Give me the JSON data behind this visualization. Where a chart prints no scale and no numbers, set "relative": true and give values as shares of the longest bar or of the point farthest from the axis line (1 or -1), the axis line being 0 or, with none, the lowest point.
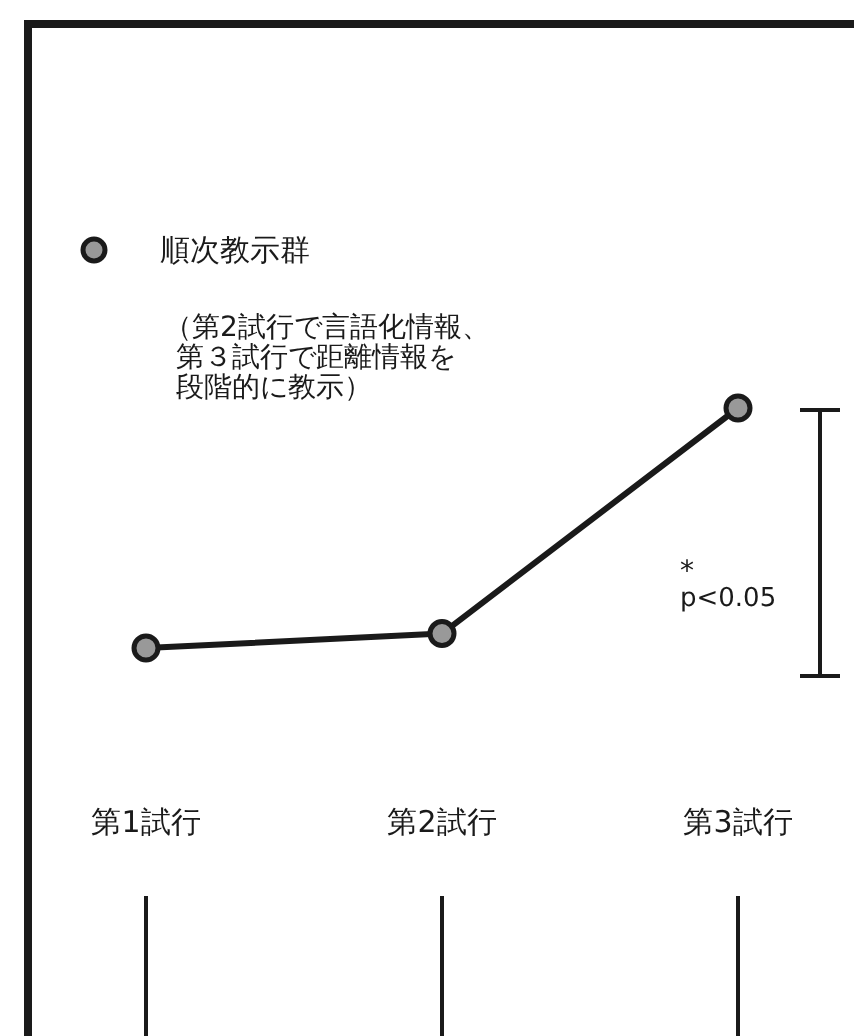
{
  "chart_data": {
    "type": "line",
    "relative": true,
    "categories": [
      "第1試行",
      "第2試行",
      "第3試行"
    ],
    "series": [
      {
        "name": "順次教示群",
        "color": "#1a1a1a",
        "values": [
          0,
          0.06,
          1
        ]
      }
    ],
    "marker": "circle",
    "line_style": "solid",
    "legend": "top left",
    "annotations": [
      "（第2試行で言語化情報、第３試行で距離情報を段階的に教示）",
      "*",
      "p<0.05"
    ]
  }
}
